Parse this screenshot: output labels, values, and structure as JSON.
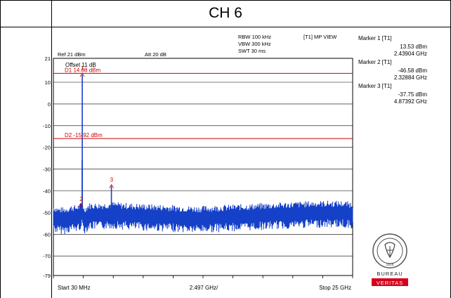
{
  "page": {
    "title": "CH 6"
  },
  "analyzer": {
    "ref_level": "Ref 21 dBm",
    "attenuation": "Att  20 dB",
    "rbw": "RBW 100 kHz",
    "vbw": "VBW 300 kHz",
    "swt": "SWT 30 ms",
    "trace_mode": "[T1] MP VIEW",
    "offset": "Offset 11 dB",
    "start": "Start 30 MHz",
    "span_div": "2.497 GHz/",
    "stop": "Stop 25 GHz"
  },
  "markers": [
    {
      "name": "Marker 1 [T1]",
      "level": "13.53 dBm",
      "freq": "2.43904 GHz"
    },
    {
      "name": "Marker 2 [T1]",
      "level": "-46.58 dBm",
      "freq": "2.32884 GHz"
    },
    {
      "name": "Marker 3 [T1]",
      "level": "-37.75 dBm",
      "freq": "4.87392 GHz"
    }
  ],
  "logo": {
    "line1": "BUREAU",
    "line2": "VERITAS",
    "year": "1828",
    "brand_color": "#d6001c"
  },
  "chart_data": {
    "type": "line",
    "xlim": [
      0.03,
      25
    ],
    "ylim": [
      -79,
      21
    ],
    "x_unit": "GHz",
    "y_unit": "dBm",
    "y_ticks": [
      21,
      10,
      0,
      -10,
      -20,
      -30,
      -40,
      -50,
      -60,
      -70,
      -79
    ],
    "y_tick_labels": [
      "21",
      "10",
      "0",
      "-10",
      "-20",
      "-30",
      "-40",
      "-50",
      "-60",
      "-70",
      "-79"
    ],
    "grid": true,
    "trace_color": "#1540c8",
    "limit_color": "#cc0000",
    "limit_lines": [
      {
        "label": "D1 14.08 dBm",
        "value": 14.08
      },
      {
        "label": "D2 -15.92 dBm",
        "value": -15.92
      }
    ],
    "marker_points": [
      {
        "label": "1",
        "x": 2.43904,
        "y": 13.53
      },
      {
        "label": "2",
        "x": 2.32884,
        "y": -46.58
      },
      {
        "label": "3",
        "x": 4.87392,
        "y": -37.75
      }
    ],
    "trace_envelope": {
      "x": [
        0.03,
        0.5,
        1.0,
        1.5,
        2.0,
        2.3,
        2.45,
        2.6,
        3.0,
        4.0,
        5.0,
        6.0,
        8.0,
        10.0,
        12.0,
        14.0,
        16.0,
        18.0,
        20.0,
        22.0,
        24.0,
        25.0
      ],
      "y": [
        -52,
        -53,
        -53,
        -52,
        -52,
        -51,
        -50,
        -53,
        -51,
        -51,
        -50.5,
        -51,
        -51.5,
        -52,
        -52.5,
        -52,
        -51.5,
        -51,
        -50.5,
        -50,
        -50,
        -50.5
      ]
    },
    "trace_spikes": [
      {
        "x": 2.44,
        "y": 13.53
      },
      {
        "x": 2.43,
        "y": -26
      },
      {
        "x": 4.87,
        "y": -37.75
      },
      {
        "x": 2.33,
        "y": -46.58
      }
    ]
  }
}
